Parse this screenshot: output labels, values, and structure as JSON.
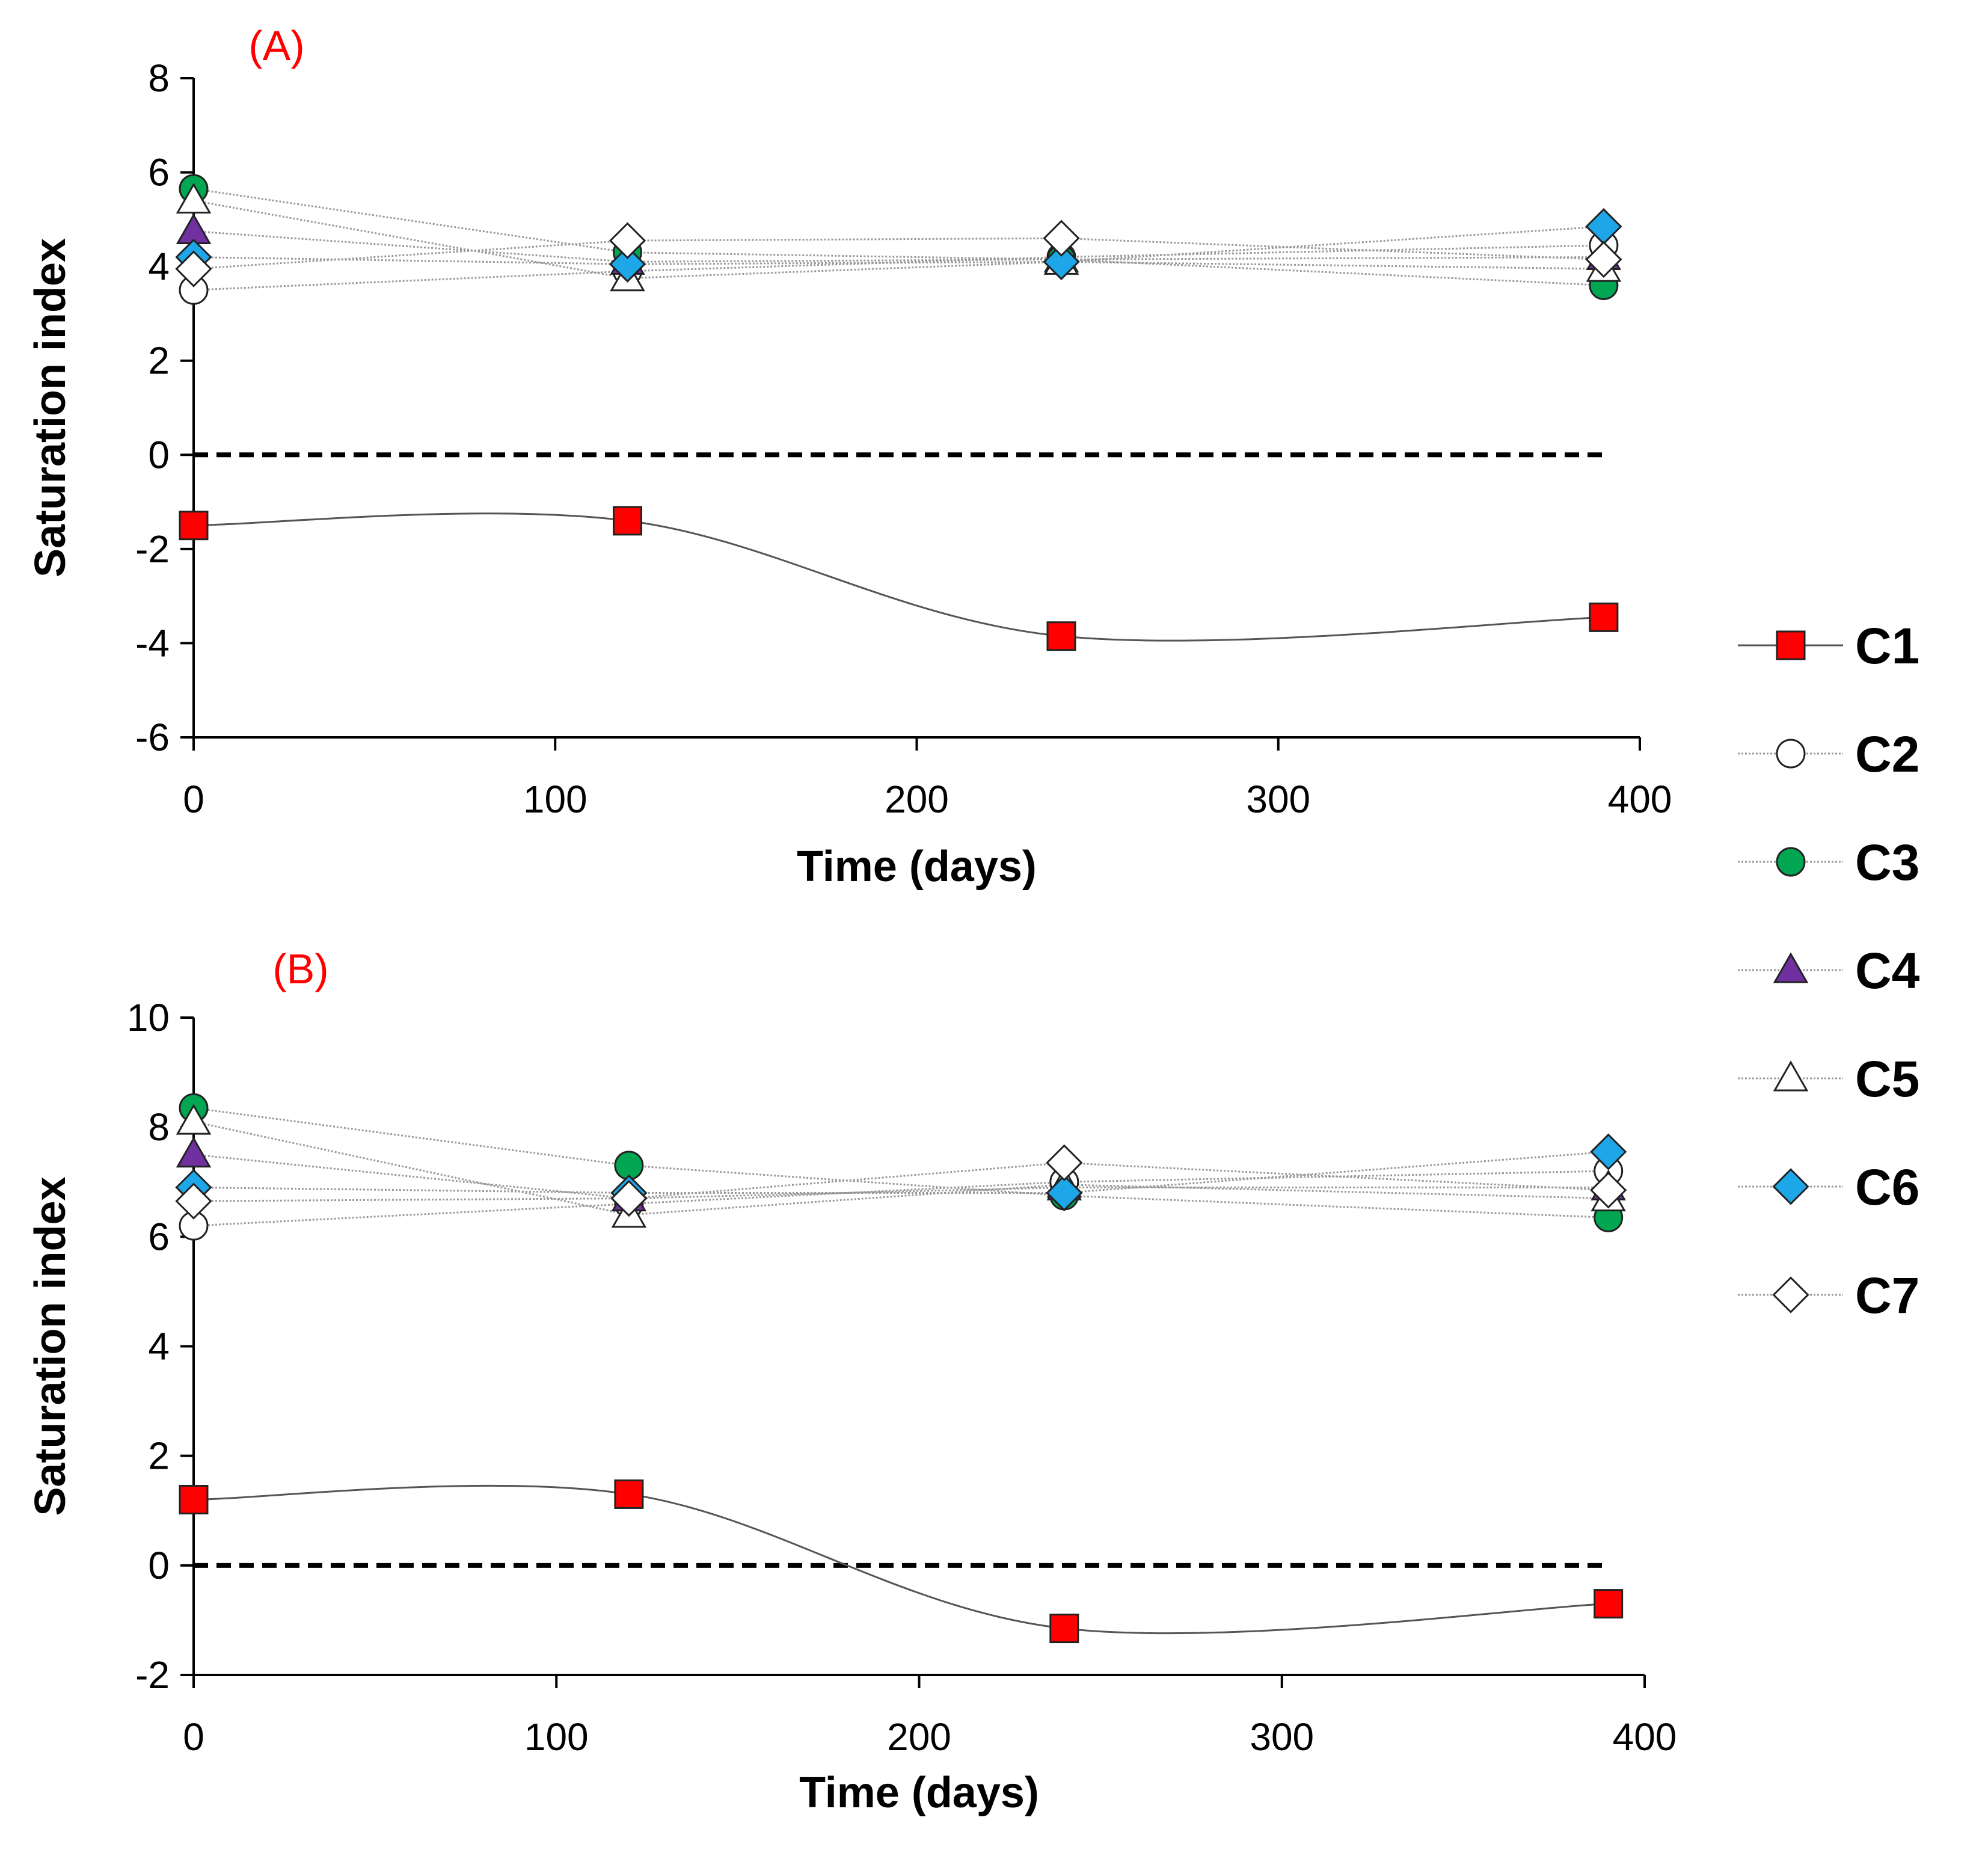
{
  "chart_data": [
    {
      "type": "line",
      "panel_label": "(A)",
      "xlabel": "Time (days)",
      "ylabel": "Saturation index",
      "xlim": [
        0,
        400
      ],
      "ylim": [
        -6,
        8
      ],
      "xticks": [
        "0",
        "100",
        "200",
        "300",
        "400"
      ],
      "yticks": [
        "-6",
        "-4",
        "-2",
        "0",
        "2",
        "4",
        "6",
        "8"
      ],
      "reference_line": 0,
      "x": [
        0,
        120,
        240,
        390
      ],
      "series": [
        {
          "name": "C1",
          "values": [
            -1.5,
            -1.4,
            -3.85,
            -3.45
          ]
        },
        {
          "name": "C2",
          "values": [
            3.5,
            3.9,
            4.2,
            4.45
          ]
        },
        {
          "name": "C3",
          "values": [
            5.65,
            4.3,
            4.15,
            3.6
          ]
        },
        {
          "name": "C4",
          "values": [
            4.75,
            4.1,
            4.15,
            4.2
          ]
        },
        {
          "name": "C5",
          "values": [
            5.4,
            3.75,
            4.1,
            3.95
          ]
        },
        {
          "name": "C6",
          "values": [
            4.2,
            4.05,
            4.1,
            4.85
          ]
        },
        {
          "name": "C7",
          "values": [
            3.95,
            4.55,
            4.6,
            4.15
          ]
        }
      ]
    },
    {
      "type": "line",
      "panel_label": "(B)",
      "xlabel": "Time (days)",
      "ylabel": "Saturation index",
      "xlim": [
        0,
        400
      ],
      "ylim": [
        -2,
        10
      ],
      "xticks": [
        "0",
        "100",
        "200",
        "300",
        "400"
      ],
      "yticks": [
        "-2",
        "0",
        "2",
        "4",
        "6",
        "8",
        "10"
      ],
      "reference_line": 0,
      "x": [
        0,
        120,
        240,
        390
      ],
      "series": [
        {
          "name": "C1",
          "values": [
            1.2,
            1.3,
            -1.15,
            -0.7
          ]
        },
        {
          "name": "C2",
          "values": [
            6.2,
            6.6,
            7.0,
            7.2
          ]
        },
        {
          "name": "C3",
          "values": [
            8.35,
            7.3,
            6.75,
            6.35
          ]
        },
        {
          "name": "C4",
          "values": [
            7.5,
            6.7,
            6.9,
            6.9
          ]
        },
        {
          "name": "C5",
          "values": [
            8.1,
            6.4,
            6.95,
            6.7
          ]
        },
        {
          "name": "C6",
          "values": [
            6.9,
            6.8,
            6.8,
            7.55
          ]
        },
        {
          "name": "C7",
          "values": [
            6.65,
            6.7,
            7.35,
            6.85
          ]
        }
      ]
    }
  ],
  "legend": {
    "position": "right",
    "items": [
      {
        "name": "C1",
        "marker": "square",
        "fill": "#ff0000"
      },
      {
        "name": "C2",
        "marker": "circle",
        "fill": "#ffffff"
      },
      {
        "name": "C3",
        "marker": "circle",
        "fill": "#00a651"
      },
      {
        "name": "C4",
        "marker": "triangle",
        "fill": "#7030a0"
      },
      {
        "name": "C5",
        "marker": "triangle",
        "fill": "#ffffff"
      },
      {
        "name": "C6",
        "marker": "diamond",
        "fill": "#1ea7e8"
      },
      {
        "name": "C7",
        "marker": "diamond",
        "fill": "#ffffff"
      }
    ]
  },
  "colors": {
    "panel_label": "#ff0000",
    "c1_line": "#555555",
    "other_lines": "#999999",
    "reference_line": "#000000"
  }
}
